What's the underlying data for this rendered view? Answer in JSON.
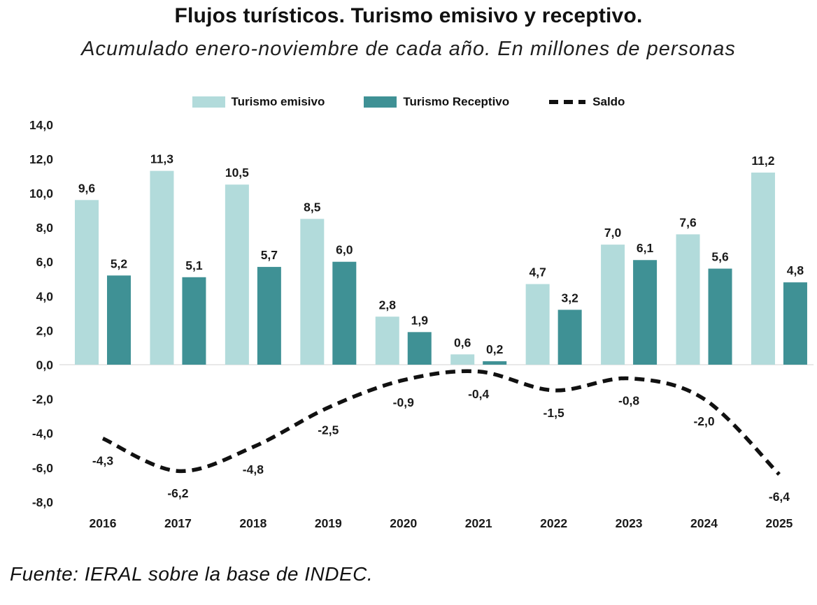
{
  "title": "Flujos turísticos. Turismo emisivo y receptivo.",
  "subtitle": "Acumulado enero-noviembre de cada año. En millones de personas",
  "footer": "Fuente: IERAL sobre la base de INDEC.",
  "legend": [
    {
      "label": "Turismo emisivo",
      "swatch": "light-teal-rect",
      "color": "#B2DBDB"
    },
    {
      "label": "Turismo Receptivo",
      "swatch": "dark-teal-rect",
      "color": "#3F9195"
    },
    {
      "label": "Saldo",
      "swatch": "black-dashed-line",
      "color": "#111111"
    }
  ],
  "chart_data": {
    "type": "bar",
    "title": "Flujos turísticos. Turismo emisivo y receptivo.",
    "subtitle": "Acumulado enero-noviembre de cada año. En millones de personas",
    "categories": [
      "2016",
      "2017",
      "2018",
      "2019",
      "2020",
      "2021",
      "2022",
      "2023",
      "2024",
      "2025"
    ],
    "series": [
      {
        "name": "Turismo emisivo",
        "type": "bar",
        "color": "#B2DBDB",
        "values": [
          9.6,
          11.3,
          10.5,
          8.5,
          2.8,
          0.6,
          4.7,
          7.0,
          7.6,
          11.2
        ],
        "labels": [
          "9,6",
          "11,3",
          "10,5",
          "8,5",
          "2,8",
          "0,6",
          "4,7",
          "7,0",
          "7,6",
          "11,2"
        ]
      },
      {
        "name": "Turismo Receptivo",
        "type": "bar",
        "color": "#3F9195",
        "values": [
          5.2,
          5.1,
          5.7,
          6.0,
          1.9,
          0.2,
          3.2,
          6.1,
          5.6,
          4.8
        ],
        "labels": [
          "5,2",
          "5,1",
          "5,7",
          "6,0",
          "1,9",
          "0,2",
          "3,2",
          "6,1",
          "5,6",
          "4,8"
        ]
      },
      {
        "name": "Saldo",
        "type": "dashed-line",
        "color": "#111111",
        "values": [
          -4.3,
          -6.2,
          -4.8,
          -2.5,
          -0.9,
          -0.4,
          -1.5,
          -0.8,
          -2.0,
          -6.4
        ],
        "labels": [
          "-4,3",
          "-6,2",
          "-4,8",
          "-2,5",
          "-0,9",
          "-0,4",
          "-1,5",
          "-0,8",
          "-2,0",
          "-6,4"
        ]
      }
    ],
    "y_axis": {
      "min": -8,
      "max": 14,
      "step": 2,
      "tick_labels": [
        "14,0",
        "12,0",
        "10,0",
        "8,0",
        "6,0",
        "4,0",
        "2,0",
        "0,0",
        "-2,0",
        "-4,0",
        "-6,0",
        "-8,0"
      ]
    },
    "xlabel": "",
    "ylabel": "",
    "grid": false,
    "zero_line_color": "#d9d9d9",
    "legend_position": "top"
  }
}
